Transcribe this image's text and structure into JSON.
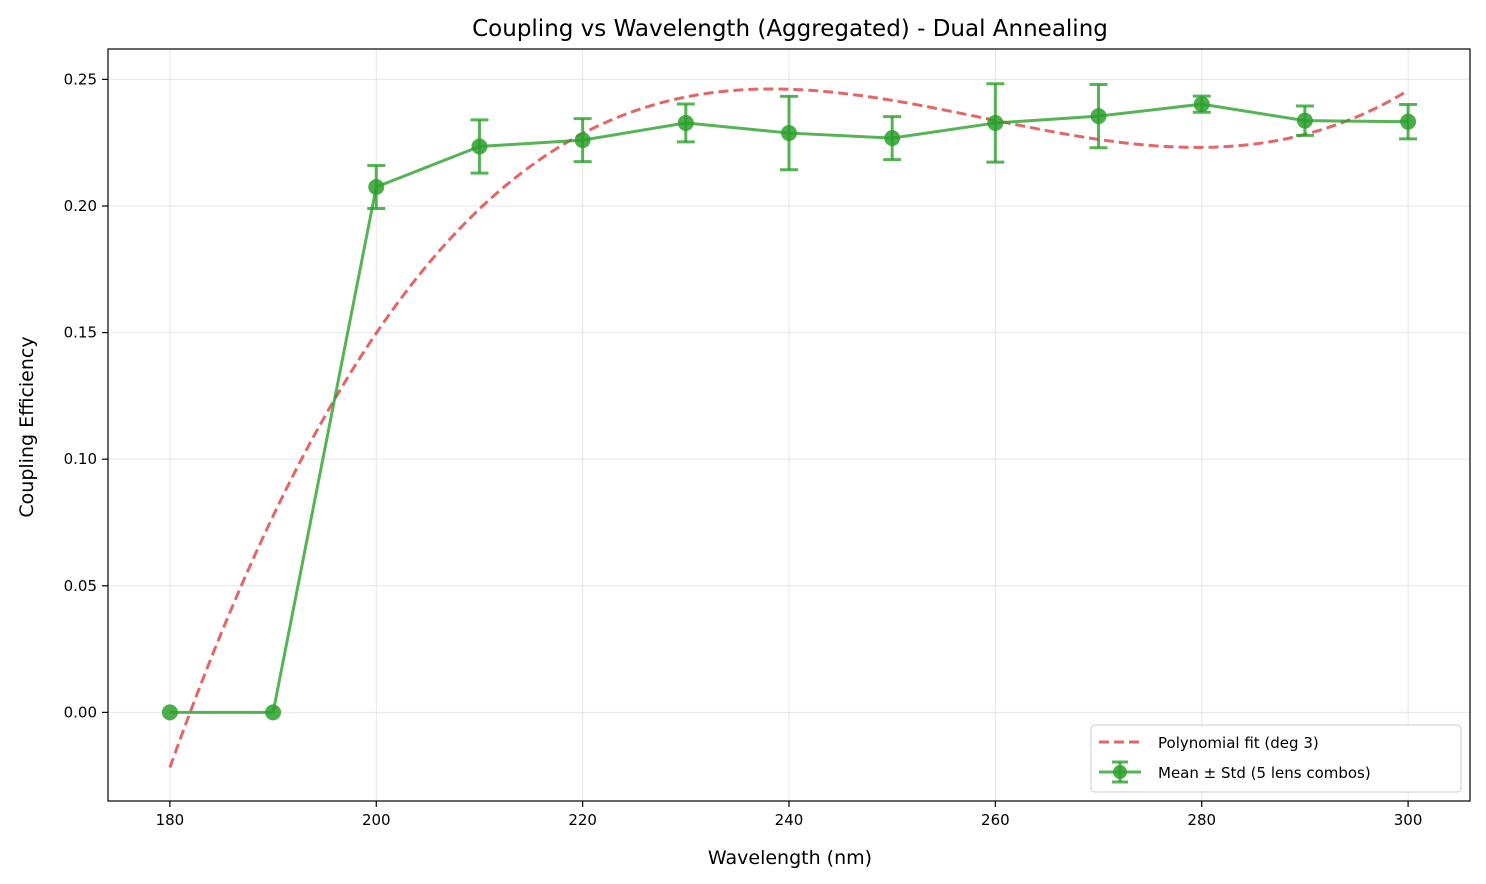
{
  "chart_data": {
    "type": "line",
    "title": "Coupling vs Wavelength (Aggregated) - Dual Annealing",
    "xlabel": "Wavelength (nm)",
    "ylabel": "Coupling Efficiency",
    "xlim": [
      174,
      306
    ],
    "ylim": [
      -0.035,
      0.262
    ],
    "xticks": [
      180,
      200,
      220,
      240,
      260,
      280,
      300
    ],
    "xtick_labels": [
      "180",
      "200",
      "220",
      "240",
      "260",
      "280",
      "300"
    ],
    "yticks": [
      0.0,
      0.05,
      0.1,
      0.15,
      0.2,
      0.25
    ],
    "ytick_labels": [
      "0.00",
      "0.05",
      "0.10",
      "0.15",
      "0.20",
      "0.25"
    ],
    "grid": true,
    "legend_position": "lower right",
    "series": [
      {
        "name": "Mean ± Std (5 lens combos)",
        "kind": "errorbar",
        "color": "#2ca02c",
        "x": [
          180,
          190,
          200,
          210,
          220,
          230,
          240,
          250,
          260,
          270,
          280,
          290,
          300
        ],
        "y": [
          0.0,
          0.0,
          0.2075,
          0.2235,
          0.226,
          0.2328,
          0.2288,
          0.2268,
          0.2328,
          0.2355,
          0.2402,
          0.2337,
          0.2333
        ],
        "yerr": [
          0.0,
          0.0,
          0.0085,
          0.0105,
          0.0085,
          0.0075,
          0.0145,
          0.0085,
          0.0155,
          0.0125,
          0.0032,
          0.0058,
          0.0068
        ]
      },
      {
        "name": "Polynomial fit (deg 3)",
        "kind": "fit",
        "color": "#d62728",
        "degree": 3
      }
    ]
  }
}
